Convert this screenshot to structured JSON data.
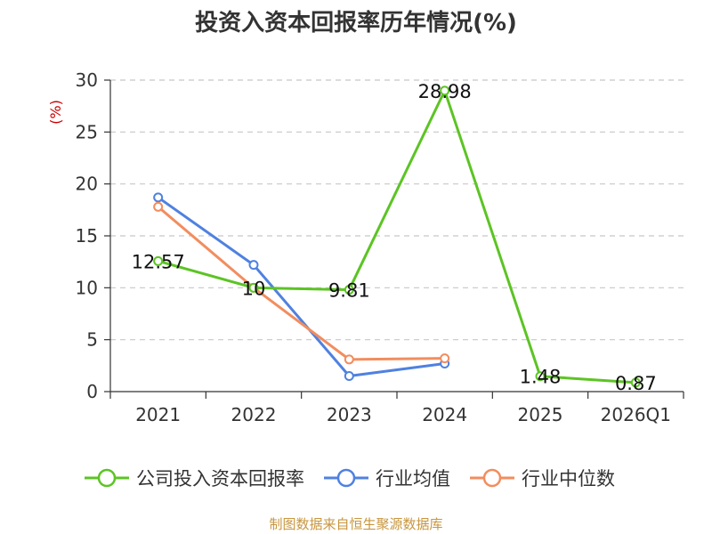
{
  "chart_data": {
    "type": "line",
    "title": "投资入资本回报率历年情况(%)",
    "ylabel": "(%)",
    "xlabel": "",
    "categories": [
      "2021",
      "2022",
      "2023",
      "2024",
      "2025",
      "2026Q1"
    ],
    "ylim": [
      0,
      30
    ],
    "yticks": [
      0,
      5,
      10,
      15,
      20,
      25,
      30
    ],
    "grid": true,
    "legend_position": "bottom",
    "series": [
      {
        "name": "公司投入资本回报率",
        "color": "#5cc424",
        "values": [
          12.57,
          10,
          9.81,
          28.98,
          1.48,
          0.87
        ],
        "data_labels": [
          "12.57",
          "10",
          "9.81",
          "28.98",
          "1.48",
          "0.87"
        ]
      },
      {
        "name": "行业均值",
        "color": "#4f81e0",
        "values": [
          18.7,
          12.2,
          1.5,
          2.7,
          null,
          null
        ]
      },
      {
        "name": "行业中位数",
        "color": "#f28d5e",
        "values": [
          17.8,
          10.0,
          3.1,
          3.2,
          null,
          null
        ]
      }
    ]
  },
  "source": "制图数据来自恒生聚源数据库"
}
